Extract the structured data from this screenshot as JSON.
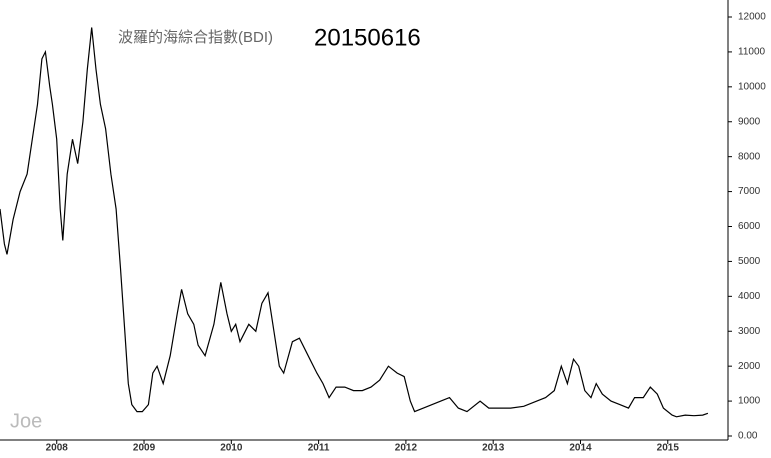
{
  "chart_data": {
    "type": "line",
    "title": "波羅的海綜合指數(BDI)",
    "subtitle": "20150616",
    "watermark": "Joe",
    "color": "#000000",
    "x": [
      2007.35,
      2007.4,
      2007.43,
      2007.5,
      2007.58,
      2007.66,
      2007.72,
      2007.78,
      2007.83,
      2007.87,
      2007.92,
      2007.95,
      2008.0,
      2008.04,
      2008.07,
      2008.12,
      2008.18,
      2008.24,
      2008.3,
      2008.35,
      2008.4,
      2008.45,
      2008.5,
      2008.56,
      2008.62,
      2008.68,
      2008.73,
      2008.78,
      2008.82,
      2008.86,
      2008.92,
      2008.98,
      2009.05,
      2009.1,
      2009.15,
      2009.22,
      2009.3,
      2009.38,
      2009.43,
      2009.5,
      2009.57,
      2009.62,
      2009.7,
      2009.8,
      2009.88,
      2009.95,
      2010.0,
      2010.05,
      2010.1,
      2010.2,
      2010.28,
      2010.35,
      2010.42,
      2010.5,
      2010.55,
      2010.6,
      2010.7,
      2010.78,
      2010.9,
      2010.98,
      2011.05,
      2011.12,
      2011.2,
      2011.3,
      2011.4,
      2011.5,
      2011.6,
      2011.7,
      2011.8,
      2011.9,
      2011.98,
      2012.05,
      2012.1,
      2012.2,
      2012.4,
      2012.5,
      2012.6,
      2012.7,
      2012.85,
      2012.95,
      2013.05,
      2013.2,
      2013.35,
      2013.5,
      2013.6,
      2013.7,
      2013.78,
      2013.85,
      2013.92,
      2013.98,
      2014.05,
      2014.12,
      2014.18,
      2014.25,
      2014.35,
      2014.45,
      2014.55,
      2014.62,
      2014.72,
      2014.8,
      2014.88,
      2014.95,
      2015.05,
      2015.1,
      2015.2,
      2015.3,
      2015.4,
      2015.46
    ],
    "values": [
      6500,
      5500,
      5200,
      6200,
      7000,
      7500,
      8500,
      9500,
      10800,
      11000,
      10000,
      9500,
      8500,
      6500,
      5600,
      7500,
      8500,
      7800,
      9000,
      10500,
      11700,
      10500,
      9500,
      8800,
      7500,
      6500,
      4800,
      3000,
      1500,
      900,
      700,
      700,
      900,
      1800,
      2000,
      1500,
      2300,
      3500,
      4200,
      3500,
      3200,
      2600,
      2300,
      3200,
      4400,
      3500,
      3000,
      3200,
      2700,
      3200,
      3000,
      3800,
      4100,
      2800,
      2000,
      1800,
      2700,
      2800,
      2200,
      1800,
      1500,
      1100,
      1400,
      1400,
      1300,
      1300,
      1400,
      1600,
      2000,
      1800,
      1700,
      1000,
      700,
      800,
      1000,
      1100,
      800,
      700,
      1000,
      800,
      800,
      800,
      850,
      1000,
      1100,
      1300,
      2000,
      1500,
      2200,
      2000,
      1300,
      1100,
      1500,
      1200,
      1000,
      900,
      800,
      1100,
      1100,
      1400,
      1200,
      800,
      600,
      550,
      600,
      580,
      600,
      650
    ],
    "xlim": [
      2007.35,
      2015.69
    ],
    "xticks": [
      2008,
      2009,
      2010,
      2011,
      2012,
      2013,
      2014,
      2015
    ],
    "ylim": [
      0,
      12000
    ],
    "yticks": [
      {
        "value": 0,
        "label": "0.00"
      },
      1000,
      2000,
      3000,
      4000,
      5000,
      6000,
      7000,
      8000,
      9000,
      10000,
      11000,
      12000
    ]
  }
}
